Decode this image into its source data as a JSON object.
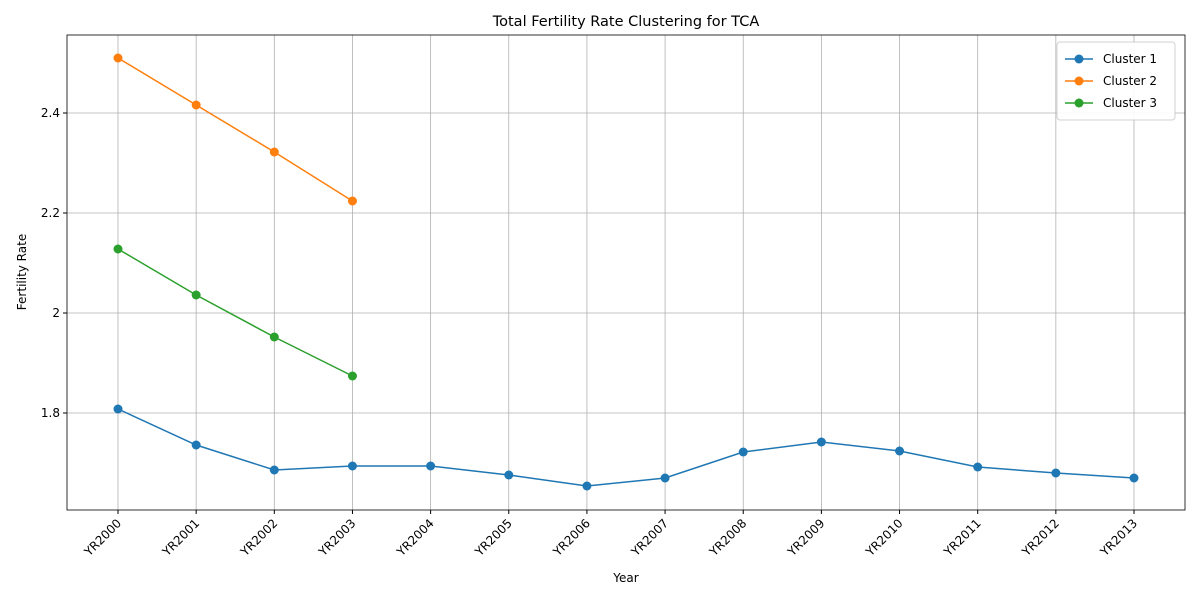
{
  "chart_data": {
    "type": "line",
    "title": "Total Fertility Rate Clustering for TCA",
    "xlabel": "Year",
    "ylabel": "Fertility Rate",
    "categories": [
      "YR2000",
      "YR2001",
      "YR2002",
      "YR2003",
      "YR2004",
      "YR2005",
      "YR2006",
      "YR2007",
      "YR2008",
      "YR2009",
      "YR2010",
      "YR2011",
      "YR2012",
      "YR2013"
    ],
    "series": [
      {
        "name": "Cluster 1",
        "color": "#1f77b4",
        "values": [
          1.808,
          1.736,
          1.686,
          1.694,
          1.694,
          1.676,
          1.654,
          1.67,
          1.722,
          1.742,
          1.724,
          1.692,
          1.68,
          1.67
        ]
      },
      {
        "name": "Cluster 2",
        "color": "#ff7f0e",
        "values": [
          2.51,
          2.416,
          2.322,
          2.224,
          null,
          null,
          null,
          null,
          null,
          null,
          null,
          null,
          null,
          null
        ]
      },
      {
        "name": "Cluster 3",
        "color": "#2ca02c",
        "values": [
          2.128,
          2.036,
          1.952,
          1.874,
          null,
          null,
          null,
          null,
          null,
          null,
          null,
          null,
          null,
          null
        ]
      }
    ],
    "ylim": [
      1.606,
      2.556
    ],
    "yticks": [
      1.8,
      2.0,
      2.2,
      2.4
    ],
    "grid": true,
    "legend": "upper right"
  }
}
